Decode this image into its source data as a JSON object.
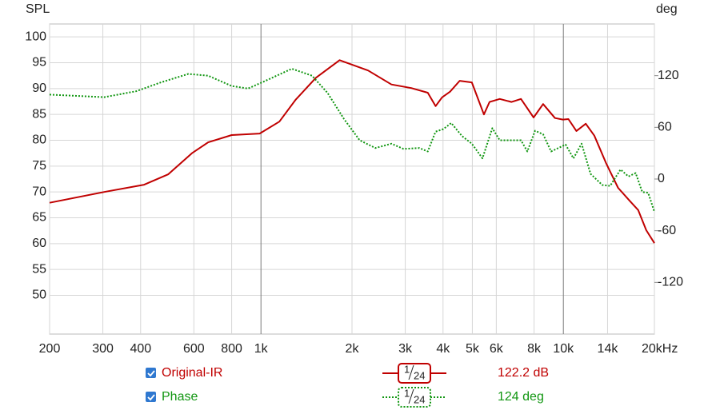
{
  "chart_data": {
    "type": "line",
    "y_label": "SPL",
    "y2_label": "deg",
    "xscale": "log",
    "grid": true,
    "xlim": [
      200,
      20000
    ],
    "xticks": [
      200,
      300,
      400,
      600,
      800,
      {
        "value": 1000,
        "label": "1k"
      },
      {
        "value": 2000,
        "label": "2k"
      },
      {
        "value": 3000,
        "label": "3k"
      },
      {
        "value": 4000,
        "label": "4k"
      },
      {
        "value": 5000,
        "label": "5k"
      },
      {
        "value": 6000,
        "label": "6k"
      },
      {
        "value": 8000,
        "label": "8k"
      },
      {
        "value": 10000,
        "label": "10k"
      },
      {
        "value": 14000,
        "label": "14k"
      },
      {
        "value": 20000,
        "label": "20kHz"
      }
    ],
    "ylim": [
      42.5,
      102.5
    ],
    "yticks": [
      50,
      55,
      60,
      65,
      70,
      75,
      80,
      85,
      90,
      95,
      100
    ],
    "y2lim": [
      -180,
      180
    ],
    "y2ticks": [
      -120,
      -60,
      0,
      60,
      120
    ],
    "series": [
      {
        "name": "Original-IR",
        "color": "#c00000",
        "line_style": "solid",
        "smoothing": {
          "numerator": "1",
          "denominator": "24"
        },
        "readout": "122.2 dB",
        "x": [
          200,
          303,
          411,
          493,
          591,
          669,
          800,
          990,
          1150,
          1300,
          1520,
          1820,
          2260,
          2700,
          3140,
          3560,
          3780,
          3970,
          4220,
          4540,
          4980,
          5460,
          5700,
          6160,
          6740,
          7240,
          7970,
          8570,
          9380,
          9960,
          10390,
          11040,
          11860,
          12660,
          13860,
          15170,
          16620,
          17670,
          18800,
          20000
        ],
        "values": [
          67.9,
          70.0,
          71.4,
          73.4,
          77.5,
          79.6,
          81.0,
          81.3,
          83.6,
          87.8,
          92.1,
          95.5,
          93.5,
          90.8,
          90.1,
          89.2,
          86.6,
          88.3,
          89.4,
          91.5,
          91.2,
          85.0,
          87.4,
          88.0,
          87.4,
          88.0,
          84.4,
          87.0,
          84.3,
          84.0,
          84.1,
          81.8,
          83.2,
          80.9,
          75.5,
          70.8,
          68.2,
          66.5,
          62.6,
          60.1
        ]
      },
      {
        "name": "Phase",
        "color": "#119611",
        "line_style": "dotted",
        "axis": "y2",
        "smoothing": {
          "numerator": "1",
          "denominator": "24"
        },
        "readout": "124 deg",
        "x": [
          200,
          303,
          387,
          465,
          575,
          669,
          800,
          906,
          1020,
          1265,
          1475,
          1660,
          1880,
          2120,
          2390,
          2700,
          2960,
          3340,
          3560,
          3780,
          4010,
          4260,
          4620,
          4980,
          5400,
          5820,
          6160,
          6740,
          7240,
          7600,
          8060,
          8570,
          9110,
          10170,
          10800,
          11490,
          12300,
          13450,
          14280,
          15460,
          16420,
          17340,
          18230,
          19070,
          20000
        ],
        "values": [
          98,
          95,
          102,
          112,
          122,
          120,
          108,
          105,
          113,
          128,
          120,
          100,
          70,
          45,
          36,
          41,
          35,
          36,
          32,
          55,
          58,
          65,
          50,
          41,
          24,
          59,
          45,
          45,
          45,
          32,
          56,
          52,
          32,
          40,
          24,
          41,
          6,
          -7,
          -8,
          11,
          3,
          7,
          -15,
          -16,
          -38
        ]
      }
    ]
  }
}
